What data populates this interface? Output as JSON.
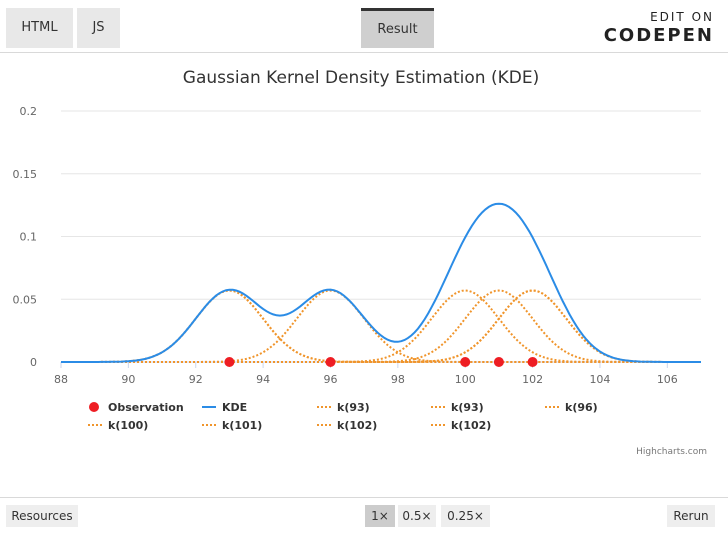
{
  "tabs": {
    "html": "HTML",
    "js": "JS",
    "result": "Result"
  },
  "codepen": {
    "line1": "EDIT ON",
    "line2": "CODEPEN"
  },
  "footer": {
    "resources": "Resources",
    "zoom": [
      "1×",
      "0.5×",
      "0.25×"
    ],
    "rerun": "Rerun"
  },
  "credits": "Highcharts.com",
  "colors": {
    "kde": "#2b8ce6",
    "kernel": "#f0952c",
    "observation": "#ee1d23"
  },
  "chart_data": {
    "type": "line",
    "title": "Gaussian Kernel Density Estimation (KDE)",
    "xlim": [
      88,
      107
    ],
    "ylim": [
      0,
      0.2
    ],
    "xticks": [
      88,
      90,
      92,
      94,
      96,
      98,
      100,
      102,
      104,
      106
    ],
    "yticks": [
      0,
      0.05,
      0.1,
      0.15,
      0.2
    ],
    "ytick_labels": [
      "0",
      "0.05",
      "0.1",
      "0.15",
      "0.2"
    ],
    "grid": true,
    "legend_position": "bottom",
    "observations": [
      93,
      96,
      100,
      101,
      102
    ],
    "bandwidth": 1.0,
    "kernel_peak": 0.057,
    "series": [
      {
        "name": "Observation",
        "kind": "scatter"
      },
      {
        "name": "KDE",
        "kind": "line"
      },
      {
        "name": "k(93)",
        "kind": "kernel",
        "center": 93
      },
      {
        "name": "k(93)",
        "kind": "kernel",
        "center": 93
      },
      {
        "name": "k(96)",
        "kind": "kernel",
        "center": 96
      },
      {
        "name": "k(100)",
        "kind": "kernel",
        "center": 100
      },
      {
        "name": "k(101)",
        "kind": "kernel",
        "center": 101
      },
      {
        "name": "k(102)",
        "kind": "kernel",
        "center": 102
      },
      {
        "name": "k(102)",
        "kind": "kernel",
        "center": 102
      }
    ]
  }
}
